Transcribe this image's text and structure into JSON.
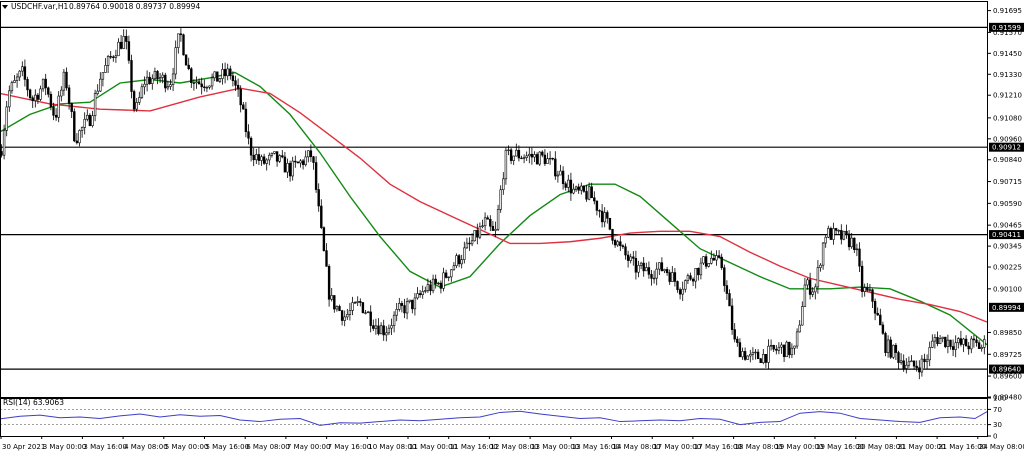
{
  "colors": {
    "background": "#ffffff",
    "bull_candle": "#000000",
    "bear_candle": "#000000",
    "ma_fast": "#138a13",
    "ma_slow": "#e0303f",
    "rsi_line": "#3d3dc8",
    "level_line": "#000000",
    "price_tag_bg": "#000000",
    "price_tag_text": "#ffffff"
  },
  "header": {
    "menu_icon": "triangle-down-icon",
    "symbol": "USDCHF.var,H1",
    "ohlc": "0.89764 0.90018 0.89737 0.89994"
  },
  "indicator_panel": {
    "label": "RSI(14) 63.9063",
    "levels": [
      70,
      30
    ]
  },
  "chart_data": [
    {
      "type": "candlestick",
      "title": "USDCHF.var,H1",
      "ylim": [
        0.8948,
        0.9175
      ],
      "y_ticks": [
        "0.91695",
        "0.91570",
        "0.91450",
        "0.91330",
        "0.91210",
        "0.91080",
        "0.90960",
        "0.90840",
        "0.90715",
        "0.90590",
        "0.90465",
        "0.90345",
        "0.90225",
        "0.90100",
        "0.89850",
        "0.89725",
        "0.89600",
        "0.89480"
      ],
      "x_ticks": [
        "30 Apr 2021",
        "3 May 00:00",
        "3 May 16:00",
        "4 May 08:00",
        "5 May 00:00",
        "5 May 16:00",
        "6 May 08:00",
        "7 May 00:00",
        "7 May 16:00",
        "10 May 08:00",
        "11 May 00:00",
        "11 May 16:00",
        "12 May 08:00",
        "13 May 00:00",
        "13 May 16:00",
        "14 May 08:00",
        "17 May 00:00",
        "17 May 16:00",
        "18 May 08:00",
        "19 May 00:00",
        "19 May 16:00",
        "20 May 08:00",
        "21 May 00:00",
        "21 May 16:00",
        "24 May 08:00"
      ],
      "horizontal_levels": [
        0.91599,
        0.90912,
        0.90411,
        0.8964
      ],
      "level_tags": [
        "0.91599",
        "0.90912",
        "0.90411",
        "0.89640"
      ],
      "current_price": 0.89994,
      "current_price_tag": "0.89994",
      "path_anchors": [
        [
          0,
          0.9084
        ],
        [
          8,
          0.9122
        ],
        [
          22,
          0.9134
        ],
        [
          32,
          0.9118
        ],
        [
          45,
          0.9128
        ],
        [
          55,
          0.9108
        ],
        [
          65,
          0.9133
        ],
        [
          75,
          0.9096
        ],
        [
          90,
          0.9108
        ],
        [
          100,
          0.9131
        ],
        [
          115,
          0.9147
        ],
        [
          125,
          0.9154
        ],
        [
          135,
          0.911
        ],
        [
          145,
          0.913
        ],
        [
          160,
          0.9131
        ],
        [
          170,
          0.9128
        ],
        [
          180,
          0.9157
        ],
        [
          190,
          0.9132
        ],
        [
          200,
          0.9128
        ],
        [
          215,
          0.913
        ],
        [
          230,
          0.9134
        ],
        [
          240,
          0.9118
        ],
        [
          250,
          0.909
        ],
        [
          262,
          0.9082
        ],
        [
          275,
          0.9085
        ],
        [
          290,
          0.9078
        ],
        [
          302,
          0.9083
        ],
        [
          312,
          0.9087
        ],
        [
          322,
          0.9038
        ],
        [
          330,
          0.9004
        ],
        [
          345,
          0.8994
        ],
        [
          360,
          0.9002
        ],
        [
          375,
          0.899
        ],
        [
          385,
          0.8986
        ],
        [
          400,
          0.8998
        ],
        [
          415,
          0.9002
        ],
        [
          425,
          0.901
        ],
        [
          440,
          0.9013
        ],
        [
          455,
          0.9025
        ],
        [
          470,
          0.9035
        ],
        [
          485,
          0.9048
        ],
        [
          495,
          0.904
        ],
        [
          505,
          0.9085
        ],
        [
          515,
          0.9087
        ],
        [
          530,
          0.9086
        ],
        [
          545,
          0.9085
        ],
        [
          560,
          0.9076
        ],
        [
          575,
          0.9065
        ],
        [
          590,
          0.9064
        ],
        [
          605,
          0.905
        ],
        [
          620,
          0.9033
        ],
        [
          635,
          0.9022
        ],
        [
          650,
          0.902
        ],
        [
          665,
          0.9022
        ],
        [
          680,
          0.9011
        ],
        [
          695,
          0.902
        ],
        [
          710,
          0.9028
        ],
        [
          722,
          0.9023
        ],
        [
          735,
          0.8978
        ],
        [
          750,
          0.897
        ],
        [
          765,
          0.8972
        ],
        [
          780,
          0.8976
        ],
        [
          795,
          0.8974
        ],
        [
          805,
          0.9012
        ],
        [
          815,
          0.901
        ],
        [
          825,
          0.9042
        ],
        [
          840,
          0.904
        ],
        [
          855,
          0.9036
        ],
        [
          862,
          0.901
        ],
        [
          872,
          0.9005
        ],
        [
          885,
          0.8978
        ],
        [
          900,
          0.897
        ],
        [
          912,
          0.8965
        ],
        [
          925,
          0.8968
        ],
        [
          935,
          0.8982
        ],
        [
          948,
          0.898
        ],
        [
          960,
          0.8978
        ],
        [
          975,
          0.8978
        ],
        [
          984,
          0.8976
        ],
        [
          987,
          0.8999
        ]
      ],
      "series": [
        {
          "type": "line",
          "x": [
            0,
            30,
            60,
            90,
            120,
            150,
            180,
            210,
            235,
            260,
            290,
            320,
            350,
            380,
            410,
            440,
            470,
            500,
            530,
            560,
            590,
            615,
            640,
            670,
            700,
            730,
            760,
            790,
            800,
            830,
            860,
            890,
            920,
            950,
            987
          ],
          "y": [
            0.91,
            0.911,
            0.9116,
            0.9117,
            0.9128,
            0.913,
            0.9128,
            0.9131,
            0.9134,
            0.9126,
            0.911,
            0.9088,
            0.9063,
            0.904,
            0.902,
            0.9011,
            0.9017,
            0.9036,
            0.9052,
            0.9064,
            0.907,
            0.907,
            0.9063,
            0.9048,
            0.9033,
            0.9025,
            0.9017,
            0.901,
            0.901,
            0.901,
            0.9011,
            0.901,
            0.9003,
            0.8995,
            0.8978
          ]
        },
        {
          "type": "line",
          "x": [
            0,
            50,
            100,
            150,
            200,
            240,
            270,
            300,
            330,
            360,
            390,
            420,
            450,
            480,
            510,
            540,
            570,
            600,
            630,
            660,
            690,
            720,
            750,
            780,
            810,
            840,
            870,
            900,
            930,
            960,
            987
          ],
          "y": [
            0.9122,
            0.9116,
            0.9113,
            0.9112,
            0.912,
            0.9125,
            0.9122,
            0.9111,
            0.9098,
            0.9085,
            0.907,
            0.906,
            0.9052,
            0.9044,
            0.9036,
            0.9036,
            0.9037,
            0.9039,
            0.9042,
            0.9043,
            0.9043,
            0.904,
            0.9031,
            0.9023,
            0.9016,
            0.9012,
            0.9008,
            0.9004,
            0.9001,
            0.8997,
            0.8991
          ]
        }
      ]
    },
    {
      "type": "line",
      "title": "RSI(14) 63.9063",
      "ylim": [
        0,
        100
      ],
      "y_ticks": [
        "100",
        "70",
        "30",
        "0"
      ],
      "reference_lines": [
        70,
        30
      ],
      "last_value": 63.9063,
      "series": [
        {
          "x": [
            0,
            20,
            40,
            60,
            80,
            100,
            120,
            140,
            160,
            180,
            200,
            220,
            240,
            260,
            280,
            300,
            320,
            340,
            360,
            380,
            400,
            420,
            440,
            460,
            480,
            500,
            520,
            540,
            560,
            580,
            600,
            620,
            640,
            660,
            680,
            700,
            720,
            740,
            760,
            780,
            800,
            820,
            840,
            860,
            880,
            900,
            920,
            940,
            960,
            975,
            987
          ],
          "y": [
            45,
            52,
            55,
            48,
            50,
            46,
            53,
            58,
            50,
            56,
            52,
            54,
            42,
            38,
            44,
            46,
            28,
            35,
            34,
            38,
            42,
            40,
            44,
            48,
            50,
            62,
            65,
            58,
            52,
            46,
            48,
            38,
            40,
            42,
            40,
            46,
            44,
            30,
            36,
            38,
            60,
            64,
            60,
            46,
            42,
            38,
            36,
            48,
            50,
            46,
            64
          ]
        }
      ]
    }
  ]
}
